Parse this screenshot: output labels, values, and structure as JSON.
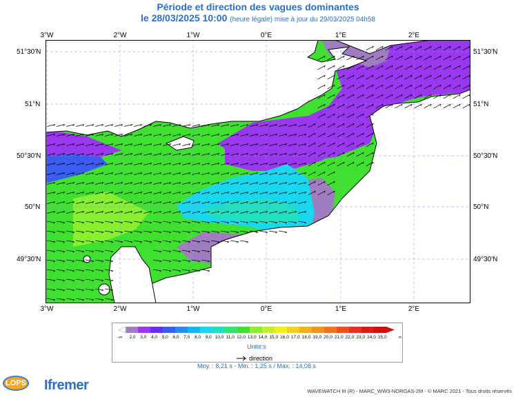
{
  "title": "Période et direction des vagues dominantes",
  "subtitle_main": "le 28/03/2025 10:00",
  "subtitle_note": "(heure légale) mise à jour du 29/03/2025 04h58",
  "lon_labels": [
    "3°W",
    "2°W",
    "1°W",
    "0°E",
    "1°E",
    "2°E"
  ],
  "lat_labels": [
    "51°30'N",
    "51°N",
    "50°30'N",
    "50°N",
    "49°30'N"
  ],
  "legend": {
    "colors": [
      "#a07cc0",
      "#9a38f0",
      "#6a2ef0",
      "#3a5cf0",
      "#2a8cf0",
      "#18b4f0",
      "#18d8f0",
      "#20e0c0",
      "#34e070",
      "#40e030",
      "#88f030",
      "#c0f030",
      "#f0f020",
      "#f0d020",
      "#f0b020",
      "#f09020",
      "#f07020",
      "#f05020",
      "#e83020",
      "#e01818",
      "#d01010"
    ],
    "ticks": [
      "2,0",
      "3,0",
      "4,0",
      "5,0",
      "6,0",
      "7,0",
      "8,0",
      "9,0",
      "10,0",
      "11,0",
      "12,0",
      "13,0",
      "14,0",
      "15,0",
      "16,0",
      "17,0",
      "18,0",
      "19,0",
      "20,0",
      "21,0",
      "22,0",
      "23,0",
      "24,0",
      "25,0"
    ],
    "low_symbol": "-∞",
    "high_symbol": "∞",
    "unit": "Unité:s",
    "direction_label": "direction"
  },
  "stats": "Moy. : 8,21 s   -   Min. : 1,25 s / Max. : 14,08 s",
  "lops_logo": "LOPS",
  "ifremer_logo": "Ifremer",
  "credit": "WAVEWATCH III (R) - MARC_WW3-NORGAS-2M - © MARC 2021 - Tous droits réservés",
  "colors": {
    "land": "#ffffff",
    "purple": "#9a38f0",
    "violet_grey": "#a07cc0",
    "green": "#40e030",
    "light_green": "#88f030",
    "cyan": "#18d8f0",
    "blue": "#3a5cf0",
    "title": "#2a6fc4"
  }
}
